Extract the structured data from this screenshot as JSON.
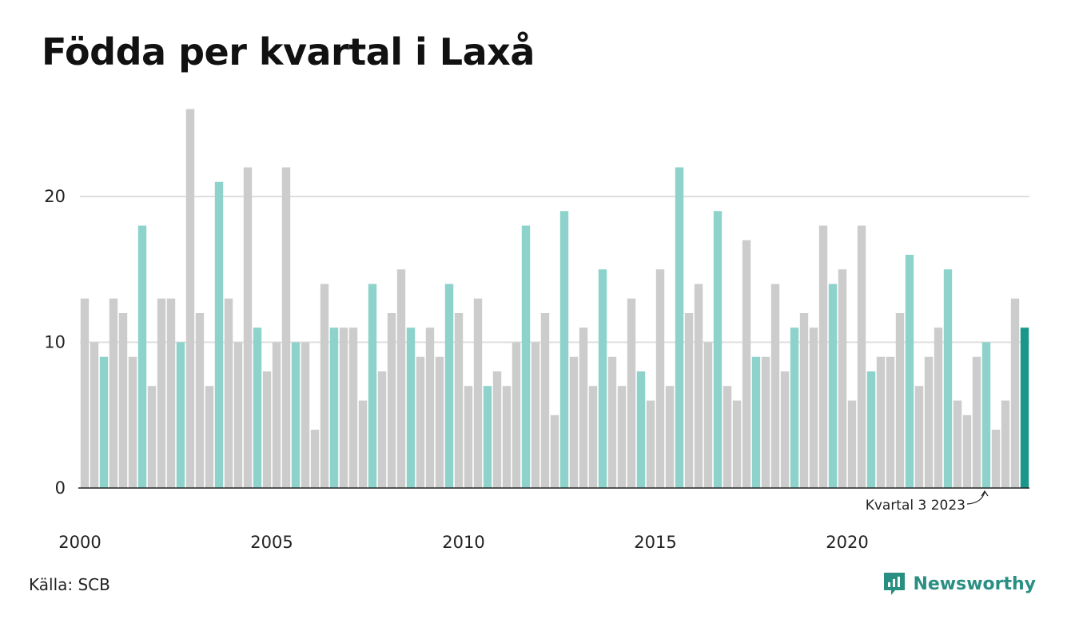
{
  "title": "Födda per kvartal i Laxå",
  "source": "Källa: SCB",
  "brand": "Newsworthy",
  "annotation": "Kvartal 3 2023",
  "colors": {
    "q3": "#8dd3cb",
    "other": "#cccccc",
    "highlight": "#1b968a",
    "brand": "#2a8f83"
  },
  "chart_data": {
    "type": "bar",
    "ylim": [
      0,
      26
    ],
    "yticks": [
      0,
      10,
      20
    ],
    "xticks": [
      "2000",
      "2005",
      "2010",
      "2015",
      "2020"
    ],
    "start_year": 2000,
    "highlight": "Kvartal 3 2023",
    "values": [
      13,
      10,
      9,
      13,
      12,
      9,
      18,
      7,
      13,
      13,
      10,
      26,
      12,
      7,
      21,
      13,
      10,
      22,
      11,
      8,
      10,
      22,
      10,
      10,
      4,
      14,
      11,
      11,
      11,
      6,
      14,
      8,
      12,
      15,
      11,
      9,
      11,
      9,
      14,
      12,
      7,
      13,
      7,
      8,
      7,
      10,
      18,
      10,
      12,
      5,
      19,
      9,
      11,
      7,
      15,
      9,
      7,
      13,
      8,
      6,
      15,
      7,
      22,
      12,
      14,
      10,
      19,
      7,
      6,
      17,
      9,
      9,
      14,
      8,
      11,
      12,
      11,
      18,
      14,
      15,
      6,
      18,
      8,
      9,
      9,
      12,
      16,
      7,
      9,
      11,
      15,
      6,
      5,
      9,
      10,
      4,
      6,
      13,
      11
    ]
  }
}
